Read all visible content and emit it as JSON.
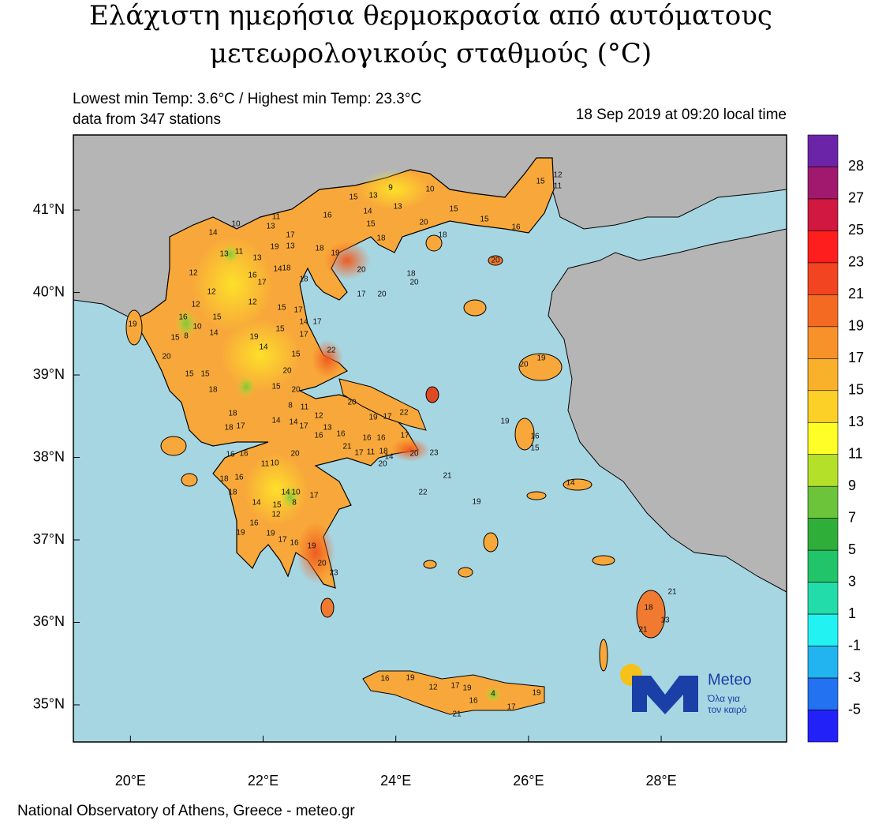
{
  "header": {
    "title_lines": [
      "Ελάχιστη ημερήσια θερμοκρασία από αυτόματους",
      "μετεωρολογικούς σταθμούς (°C)"
    ],
    "info_left": [
      "Lowest min Temp: 3.6°C / Highest min Temp: 23.3°C",
      "data from 347 stations"
    ],
    "info_right": "18 Sep 2019 at 09:20 local time"
  },
  "map": {
    "xlim": [
      19.14,
      29.89
    ],
    "ylim": [
      34.55,
      41.91
    ],
    "xticks": [
      {
        "value": 20,
        "label": "20°E"
      },
      {
        "value": 22,
        "label": "22°E"
      },
      {
        "value": 24,
        "label": "24°E"
      },
      {
        "value": 26,
        "label": "26°E"
      },
      {
        "value": 28,
        "label": "28°E"
      }
    ],
    "yticks": [
      {
        "value": 35,
        "label": "35°N"
      },
      {
        "value": 36,
        "label": "36°N"
      },
      {
        "value": 37,
        "label": "37°N"
      },
      {
        "value": 38,
        "label": "38°N"
      },
      {
        "value": 39,
        "label": "39°N"
      },
      {
        "value": 40,
        "label": "40°N"
      },
      {
        "value": 41,
        "label": "41°N"
      }
    ],
    "stations": [
      9,
      10,
      15,
      13,
      13,
      14,
      15,
      15,
      11,
      16,
      13,
      14,
      10,
      17,
      13,
      19,
      18,
      19,
      18,
      13,
      11,
      13,
      14,
      18,
      16,
      17,
      18,
      20,
      18,
      20,
      17,
      20,
      20,
      18,
      15,
      16,
      15,
      12,
      11,
      20,
      12,
      12,
      12,
      15,
      17,
      12,
      16,
      10,
      15,
      15,
      8,
      14,
      15,
      14,
      17,
      17,
      19,
      14,
      15,
      22,
      19,
      20,
      20,
      15,
      15,
      18,
      15,
      20,
      8,
      11,
      12,
      20,
      19,
      17,
      22,
      19,
      20,
      18,
      17,
      18,
      14,
      14,
      17,
      13,
      16,
      16,
      16,
      16,
      17,
      21,
      17,
      11,
      18,
      14,
      20,
      23,
      20,
      16,
      16,
      11,
      10,
      20,
      18,
      16,
      18,
      14,
      10,
      15,
      8,
      12,
      17,
      14,
      16,
      19,
      19,
      17,
      16,
      19,
      20,
      23,
      19,
      16,
      15,
      16,
      19,
      12,
      17,
      19,
      16,
      4,
      17,
      21,
      19,
      18,
      13,
      21,
      21,
      14,
      19,
      21,
      22
    ]
  },
  "colorbar": {
    "labels": [
      28,
      27,
      25,
      23,
      21,
      19,
      17,
      15,
      13,
      11,
      9,
      7,
      5,
      3,
      1,
      -1,
      -3,
      -5
    ],
    "colors": [
      "#6b24a8",
      "#a0196e",
      "#d01840",
      "#ff1e1e",
      "#f24420",
      "#f46a22",
      "#f7922a",
      "#f9b02a",
      "#fcd026",
      "#ffff26",
      "#b5e02a",
      "#6cc43a",
      "#2fae3a",
      "#22c46a",
      "#22dcaa",
      "#22f2f2",
      "#22b4f0",
      "#2272f2",
      "#2222f8"
    ]
  },
  "logo": {
    "name": "Meteo",
    "tagline": [
      "Όλα για",
      "τον καιρό"
    ]
  },
  "footer": "National Observatory of Athens, Greece - meteo.gr"
}
